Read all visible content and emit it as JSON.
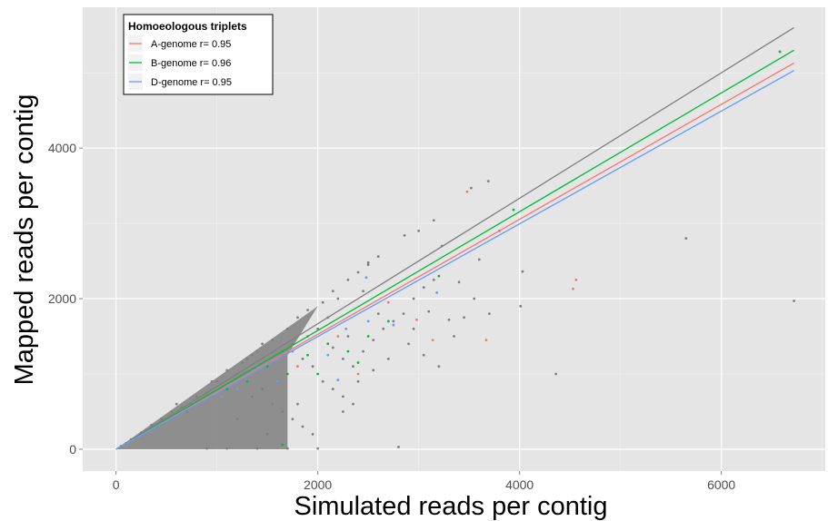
{
  "chart_data": {
    "type": "scatter",
    "xlabel": "Simulated reads per contig",
    "ylabel": "Mapped reads per contig",
    "xlim": [
      -330,
      7030
    ],
    "ylim": [
      -290,
      5870
    ],
    "x_ticks": [
      0,
      2000,
      4000,
      6000
    ],
    "y_ticks": [
      0,
      2000,
      4000
    ],
    "x_tick_labels": [
      "0",
      "2000",
      "4000",
      "6000"
    ],
    "y_tick_labels": [
      "0",
      "2000",
      "4000"
    ],
    "grid": true,
    "background": "#e5e5e5",
    "legend": {
      "title": "Homoeologous triplets",
      "position": "top-left",
      "entries": [
        {
          "label": "A-genome r= 0.95",
          "color": "#f8766d"
        },
        {
          "label": "B-genome r= 0.96",
          "color": "#00ba38"
        },
        {
          "label": "D-genome r= 0.95",
          "color": "#619cff"
        }
      ]
    },
    "lines": [
      {
        "color": "#7f7f7f",
        "x": [
          0,
          6720
        ],
        "y": [
          0,
          5600
        ]
      },
      {
        "color": "#00ba38",
        "x": [
          0,
          6720
        ],
        "y": [
          0,
          5300
        ]
      },
      {
        "color": "#f8766d",
        "x": [
          0,
          6720
        ],
        "y": [
          0,
          5130
        ]
      },
      {
        "color": "#619cff",
        "x": [
          0,
          6720
        ],
        "y": [
          0,
          5030
        ]
      }
    ],
    "points": {
      "gray": [
        [
          6720,
          1970
        ],
        [
          5650,
          2800
        ],
        [
          4360,
          1000
        ],
        [
          4030,
          2360
        ],
        [
          3690,
          3560
        ],
        [
          3520,
          3470
        ],
        [
          3230,
          2700
        ],
        [
          3150,
          3040
        ],
        [
          3000,
          2900
        ],
        [
          2860,
          2840
        ],
        [
          2800,
          30
        ],
        [
          2600,
          2560
        ],
        [
          2500,
          2480
        ],
        [
          3400,
          2220
        ],
        [
          3600,
          2520
        ],
        [
          3800,
          2900
        ],
        [
          4010,
          1900
        ],
        [
          3300,
          1720
        ],
        [
          3100,
          1830
        ],
        [
          2950,
          1600
        ],
        [
          2700,
          1200
        ],
        [
          2550,
          1050
        ],
        [
          2400,
          900
        ],
        [
          2300,
          1500
        ],
        [
          2450,
          2100
        ],
        [
          2600,
          1800
        ],
        [
          2200,
          2000
        ],
        [
          2100,
          1750
        ],
        [
          2000,
          1600
        ],
        [
          2250,
          500
        ],
        [
          2900,
          1400
        ],
        [
          3050,
          1250
        ],
        [
          3200,
          1100
        ],
        [
          3350,
          1500
        ],
        [
          3450,
          1750
        ],
        [
          3550,
          2000
        ],
        [
          3700,
          1800
        ],
        [
          2000,
          10
        ],
        [
          1700,
          10
        ],
        [
          1400,
          10
        ],
        [
          1100,
          10
        ],
        [
          900,
          10
        ],
        [
          1500,
          200
        ],
        [
          1200,
          400
        ],
        [
          1800,
          600
        ],
        [
          1600,
          900
        ],
        [
          1300,
          1200
        ],
        [
          1000,
          900
        ],
        [
          800,
          700
        ],
        [
          700,
          500
        ],
        [
          600,
          600
        ],
        [
          500,
          400
        ],
        [
          400,
          300
        ],
        [
          300,
          250
        ],
        [
          200,
          150
        ],
        [
          100,
          80
        ],
        [
          1700,
          1600
        ],
        [
          1800,
          1750
        ],
        [
          1900,
          1850
        ],
        [
          2050,
          1950
        ],
        [
          2150,
          2100
        ],
        [
          2300,
          2250
        ],
        [
          2400,
          2350
        ],
        [
          2500,
          2450
        ],
        [
          1550,
          1450
        ],
        [
          1400,
          1300
        ],
        [
          1250,
          1150
        ],
        [
          1100,
          1050
        ],
        [
          950,
          900
        ],
        [
          1650,
          1300
        ],
        [
          1750,
          1400
        ],
        [
          1850,
          1200
        ],
        [
          1950,
          1100
        ],
        [
          2050,
          900
        ],
        [
          2150,
          800
        ],
        [
          2250,
          700
        ],
        [
          2350,
          600
        ],
        [
          2150,
          1350
        ],
        [
          2250,
          1200
        ],
        [
          2350,
          1100
        ],
        [
          2450,
          1300
        ],
        [
          2550,
          1450
        ],
        [
          2650,
          1600
        ],
        [
          2750,
          1700
        ],
        [
          2850,
          1800
        ],
        [
          2950,
          2000
        ],
        [
          3050,
          2150
        ],
        [
          3150,
          2250
        ],
        [
          1350,
          700
        ],
        [
          1450,
          800
        ],
        [
          1550,
          600
        ],
        [
          1650,
          500
        ],
        [
          1750,
          400
        ],
        [
          1850,
          300
        ],
        [
          1950,
          200
        ],
        [
          1450,
          1400
        ],
        [
          1350,
          1250
        ],
        [
          1200,
          1000
        ],
        [
          1050,
          800
        ],
        [
          850,
          650
        ],
        [
          750,
          600
        ],
        [
          650,
          550
        ],
        [
          550,
          500
        ],
        [
          450,
          400
        ],
        [
          350,
          320
        ],
        [
          250,
          220
        ],
        [
          150,
          130
        ],
        [
          50,
          40
        ]
      ],
      "red": [
        [
          3480,
          3420
        ],
        [
          4560,
          2250
        ],
        [
          4530,
          2130
        ],
        [
          3670,
          1450
        ],
        [
          3140,
          1450
        ],
        [
          2980,
          1720
        ],
        [
          2400,
          1000
        ],
        [
          2200,
          1500
        ],
        [
          1800,
          1100
        ],
        [
          1600,
          1200
        ],
        [
          2700,
          1950
        ]
      ],
      "green": [
        [
          6580,
          5280
        ],
        [
          3940,
          3180
        ],
        [
          3200,
          2300
        ],
        [
          2700,
          1700
        ],
        [
          2500,
          1500
        ],
        [
          2300,
          1300
        ],
        [
          2100,
          1400
        ],
        [
          1900,
          1250
        ],
        [
          1700,
          1000
        ],
        [
          1500,
          1100
        ],
        [
          2000,
          1000
        ],
        [
          2400,
          1150
        ],
        [
          1300,
          900
        ],
        [
          1100,
          800
        ],
        [
          1650,
          60
        ]
      ],
      "blue": [
        [
          3180,
          2080
        ],
        [
          2480,
          2280
        ],
        [
          2280,
          1600
        ],
        [
          2200,
          920
        ],
        [
          2100,
          1250
        ],
        [
          1900,
          1500
        ],
        [
          1750,
          1300
        ],
        [
          1600,
          900
        ],
        [
          1400,
          1100
        ],
        [
          1200,
          800
        ],
        [
          2500,
          1700
        ],
        [
          2750,
          1650
        ],
        [
          1050,
          700
        ]
      ]
    }
  }
}
